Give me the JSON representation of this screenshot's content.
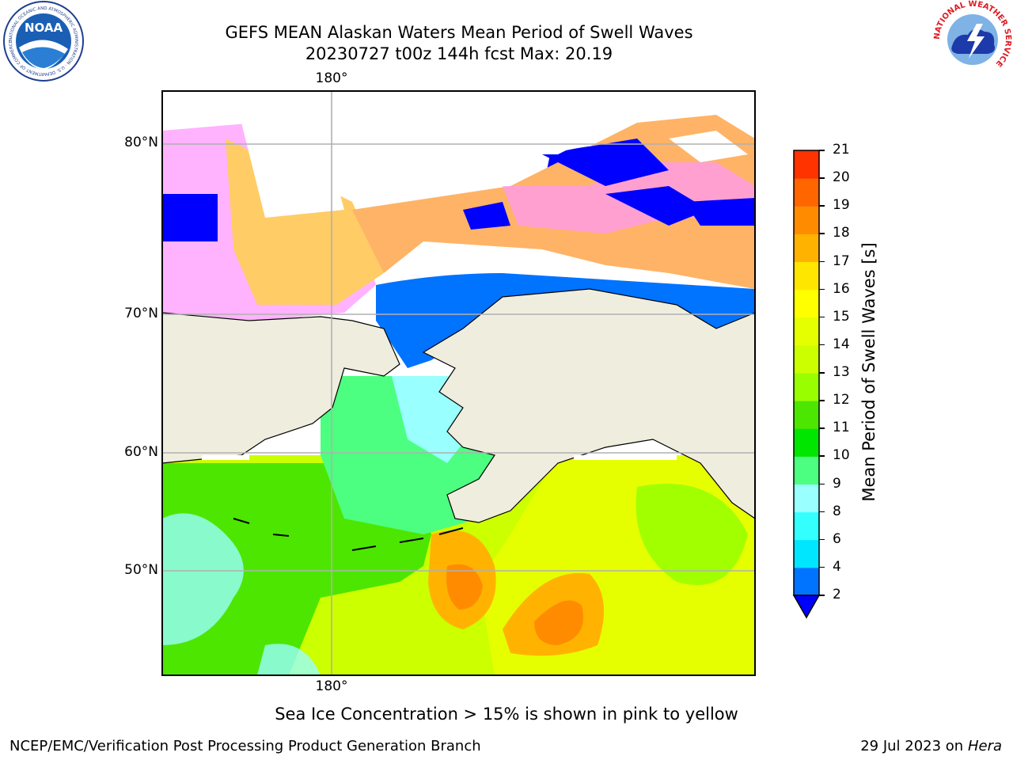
{
  "header": {
    "title_line1": "GEFS MEAN Alaskan Waters Mean Period of Swell Waves",
    "title_line2": "20230727 t00z 144h fcst   Max: 20.19"
  },
  "logos": {
    "left_name": "NOAA",
    "left_ring_text": "NATIONAL OCEANIC AND ATMOSPHERIC ADMINISTRATION · U.S. DEPARTMENT OF COMMERCE",
    "right_ring_text": "NATIONAL WEATHER SERVICE"
  },
  "map": {
    "lon_label_top": "180°",
    "lon_label_bottom": "180°",
    "lat_labels": [
      "80°N",
      "70°N",
      "60°N",
      "50°N"
    ],
    "colors": {
      "land": "#efedde",
      "ice_white": "#ffffff",
      "frame": "#000000",
      "grid": "#b0b0b0"
    }
  },
  "colorbar": {
    "title": "Mean Period of Swell Waves [s]",
    "ticks": [
      "2",
      "4",
      "6",
      "8",
      "9",
      "10",
      "11",
      "12",
      "13",
      "14",
      "15",
      "16",
      "17",
      "18",
      "19",
      "20",
      "21"
    ],
    "colors": [
      "#0073ff",
      "#00e6ff",
      "#33ffff",
      "#99ffff",
      "#4dff80",
      "#00e600",
      "#4de600",
      "#99ff00",
      "#ccff00",
      "#e6ff00",
      "#ffff00",
      "#ffe600",
      "#ffb300",
      "#ff8c00",
      "#ff6600",
      "#ff3300"
    ],
    "extend_color": "#0000ff",
    "cap_color": "#ff0000"
  },
  "footer": {
    "note": "Sea Ice Concentration > 15% is shown in pink to yellow",
    "left": "NCEP/EMC/Verification Post Processing Product Generation Branch",
    "date": "29 Jul 2023 on ",
    "host": "Hera"
  }
}
